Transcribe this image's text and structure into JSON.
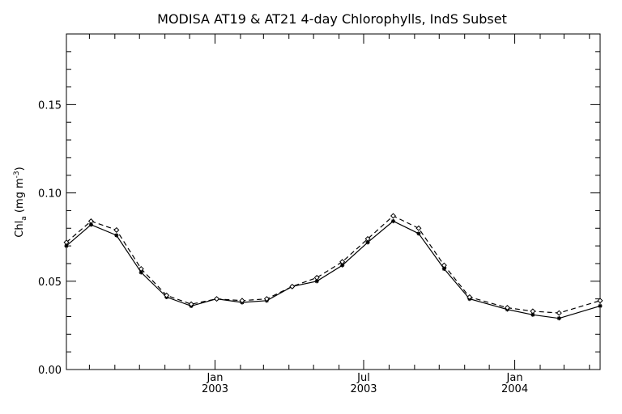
{
  "chart_data": {
    "type": "line",
    "title": "MODISA AT19 & AT21 4-day Chlorophylls, IndS Subset",
    "ylabel": {
      "base": "Chl",
      "sub": "a",
      "units_open": " (mg m",
      "sup": "-3",
      "units_close": ")"
    },
    "xlabel": "",
    "ylim": [
      0,
      0.19
    ],
    "xlim": [
      "2002-07-04",
      "2004-04-14"
    ],
    "yticks": [
      {
        "value": 0.0,
        "label": "0.00"
      },
      {
        "value": 0.05,
        "label": "0.05"
      },
      {
        "value": 0.1,
        "label": "0.10"
      },
      {
        "value": 0.15,
        "label": "0.15"
      }
    ],
    "xticks": [
      {
        "date": "2003-01-01",
        "label": "Jan",
        "year": "2003"
      },
      {
        "date": "2003-07-01",
        "label": "Jul",
        "year": "2003"
      },
      {
        "date": "2004-01-01",
        "label": "Jan",
        "year": "2004"
      }
    ],
    "minor_xticks": [
      "2002-08-01",
      "2002-09-01",
      "2002-10-01",
      "2002-11-01",
      "2002-12-01",
      "2003-02-01",
      "2003-03-01",
      "2003-04-01",
      "2003-05-01",
      "2003-06-01",
      "2003-08-01",
      "2003-09-01",
      "2003-10-01",
      "2003-11-01",
      "2003-12-01",
      "2004-02-01",
      "2004-03-01",
      "2004-04-01"
    ],
    "grid": false,
    "series": [
      {
        "style": "solid",
        "marker": "asterisk",
        "color": "#000000",
        "points": [
          [
            "2002-07-04",
            0.07
          ],
          [
            "2002-08-03",
            0.082
          ],
          [
            "2002-09-03",
            0.076
          ],
          [
            "2002-10-03",
            0.055
          ],
          [
            "2002-11-03",
            0.041
          ],
          [
            "2002-12-03",
            0.036
          ],
          [
            "2003-01-03",
            0.04
          ],
          [
            "2003-02-03",
            0.038
          ],
          [
            "2003-03-05",
            0.039
          ],
          [
            "2003-04-05",
            0.047
          ],
          [
            "2003-05-05",
            0.05
          ],
          [
            "2003-06-05",
            0.059
          ],
          [
            "2003-07-06",
            0.072
          ],
          [
            "2003-08-06",
            0.084
          ],
          [
            "2003-09-06",
            0.077
          ],
          [
            "2003-10-07",
            0.057
          ],
          [
            "2003-11-07",
            0.04
          ],
          [
            "2003-12-23",
            0.034
          ],
          [
            "2004-01-23",
            0.031
          ],
          [
            "2004-02-24",
            0.029
          ],
          [
            "2004-04-14",
            0.036
          ]
        ]
      },
      {
        "style": "dashed",
        "marker": "diamond",
        "color": "#000000",
        "points": [
          [
            "2002-07-04",
            0.072
          ],
          [
            "2002-08-03",
            0.084
          ],
          [
            "2002-09-03",
            0.079
          ],
          [
            "2002-10-03",
            0.057
          ],
          [
            "2002-11-03",
            0.042
          ],
          [
            "2002-12-03",
            0.037
          ],
          [
            "2003-01-03",
            0.04
          ],
          [
            "2003-02-03",
            0.039
          ],
          [
            "2003-03-05",
            0.04
          ],
          [
            "2003-04-05",
            0.047
          ],
          [
            "2003-05-05",
            0.052
          ],
          [
            "2003-06-05",
            0.061
          ],
          [
            "2003-07-06",
            0.074
          ],
          [
            "2003-08-06",
            0.087
          ],
          [
            "2003-09-06",
            0.08
          ],
          [
            "2003-10-07",
            0.059
          ],
          [
            "2003-11-07",
            0.041
          ],
          [
            "2003-12-23",
            0.035
          ],
          [
            "2004-01-23",
            0.033
          ],
          [
            "2004-02-24",
            0.032
          ],
          [
            "2004-04-14",
            0.039
          ]
        ]
      }
    ]
  }
}
